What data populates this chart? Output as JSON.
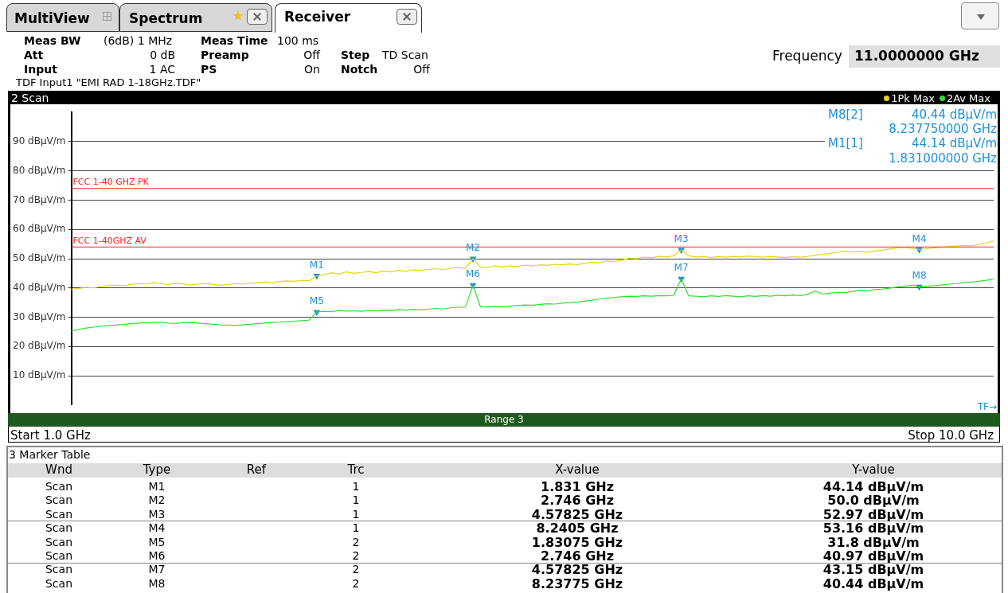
{
  "chart_data": {
    "type": "line",
    "title": "2 Scan",
    "legend": "top right",
    "grid": "y",
    "tick_labels": "y",
    "categories": [
      null,
      null,
      null,
      null,
      null,
      null,
      null,
      null,
      null,
      null,
      null,
      null,
      null,
      null,
      null,
      null,
      null,
      null,
      null,
      null,
      null,
      null,
      null,
      null,
      null,
      null,
      null,
      null,
      null,
      null,
      null,
      null,
      null,
      null,
      null,
      null,
      null,
      null,
      null,
      null,
      null,
      null,
      null,
      null,
      null,
      null,
      null,
      null,
      null,
      null,
      null,
      null,
      null,
      null,
      null,
      null,
      null,
      null,
      null,
      null,
      null,
      null,
      null,
      null,
      null,
      null,
      null,
      null,
      null,
      null,
      null,
      null,
      null,
      null,
      null,
      null,
      null,
      null,
      null,
      null,
      null,
      null,
      null,
      null,
      null,
      null,
      null,
      null,
      null,
      null,
      null,
      null,
      null,
      null,
      null,
      null,
      null,
      null,
      null,
      null,
      null,
      null,
      null,
      null,
      null,
      null,
      null,
      null,
      null,
      null,
      null,
      null,
      null,
      null,
      null,
      null,
      null,
      null,
      null,
      null,
      null,
      null,
      null,
      null,
      null
    ],
    "ylim": [
      0,
      100
    ],
    "yticks": [
      {
        "value": 10,
        "label": "10 dBµV/m"
      },
      {
        "value": 20,
        "label": "20 dBµV/m"
      },
      {
        "value": 30,
        "label": "30 dBµV/m"
      },
      {
        "value": 40,
        "label": "40 dBµV/m"
      },
      {
        "value": 50,
        "label": "50 dBµV/m"
      },
      {
        "value": 60,
        "label": "60 dBµV/m"
      },
      {
        "value": 70,
        "label": "70 dBµV/m"
      },
      {
        "value": 80,
        "label": "80 dBµV/m"
      },
      {
        "value": 90,
        "label": "90 dBµV/m"
      }
    ],
    "series": [
      {
        "name": "1Pk Max",
        "type": "line",
        "color": "#e6d21e",
        "values": [
          39.5,
          39.8,
          40.2,
          40.0,
          40.5,
          40.8,
          41.0,
          40.7,
          41.2,
          41.5,
          41.3,
          41.8,
          41.5,
          41.2,
          41.6,
          41.4,
          41.0,
          41.3,
          41.6,
          41.2,
          40.9,
          41.2,
          41.5,
          41.3,
          41.6,
          41.8,
          42.0,
          41.8,
          42.2,
          42.4,
          42.3,
          42.6,
          42.5,
          44.14,
          44.5,
          45.2,
          44.8,
          45.5,
          45.0,
          45.3,
          45.6,
          45.2,
          45.8,
          45.5,
          46.0,
          45.7,
          46.2,
          46.0,
          46.3,
          46.6,
          46.2,
          46.8,
          47.0,
          46.7,
          50.0,
          47.2,
          47.0,
          47.5,
          47.2,
          47.6,
          47.3,
          47.8,
          47.5,
          47.9,
          47.7,
          48.1,
          47.9,
          48.2,
          48.0,
          48.4,
          48.8,
          48.6,
          49.2,
          49.0,
          49.5,
          50.2,
          50.0,
          50.5,
          50.3,
          50.8,
          50.6,
          51.0,
          52.97,
          51.0,
          50.6,
          50.8,
          50.4,
          50.7,
          50.5,
          50.8,
          50.6,
          50.9,
          50.7,
          50.5,
          50.8,
          50.6,
          50.4,
          50.7,
          50.5,
          50.8,
          51.2,
          51.5,
          51.8,
          52.2,
          52.6,
          52.3,
          52.5,
          52.2,
          52.6,
          52.9,
          53.3,
          53.7,
          53.9,
          53.5,
          53.16,
          53.4,
          53.7,
          53.9,
          54.1,
          54.3,
          54.5,
          54.4,
          54.9,
          55.3,
          56.0
        ]
      },
      {
        "name": "2Av Max",
        "type": "line",
        "color": "#33dd33",
        "values": [
          25.3,
          25.8,
          26.3,
          26.6,
          26.9,
          27.1,
          27.3,
          27.5,
          27.8,
          28.0,
          28.1,
          28.2,
          28.3,
          28.0,
          27.9,
          28.1,
          28.2,
          28.0,
          27.8,
          27.6,
          27.4,
          27.3,
          27.2,
          27.4,
          27.6,
          27.8,
          28.0,
          28.2,
          28.3,
          28.5,
          28.6,
          28.8,
          29.0,
          31.8,
          32.0,
          31.9,
          32.3,
          32.1,
          32.2,
          32.0,
          32.3,
          32.2,
          32.4,
          32.2,
          32.6,
          32.4,
          32.7,
          32.5,
          32.8,
          33.0,
          32.8,
          33.2,
          33.4,
          33.5,
          40.97,
          33.6,
          33.5,
          33.7,
          33.6,
          33.8,
          34.0,
          34.2,
          34.1,
          34.4,
          34.6,
          34.5,
          34.8,
          35.0,
          35.2,
          35.5,
          35.8,
          36.2,
          36.5,
          36.8,
          37.0,
          37.2,
          37.1,
          37.3,
          37.2,
          37.4,
          37.3,
          37.5,
          43.15,
          37.3,
          37.2,
          37.0,
          37.3,
          37.1,
          37.4,
          37.2,
          37.0,
          37.3,
          37.1,
          37.4,
          37.2,
          37.5,
          37.3,
          37.6,
          37.4,
          37.8,
          39.0,
          37.9,
          38.2,
          38.5,
          38.4,
          38.8,
          39.2,
          39.0,
          39.4,
          39.6,
          39.9,
          40.3,
          40.6,
          40.9,
          40.44,
          40.6,
          40.8,
          41.0,
          41.3,
          41.5,
          41.8,
          42.0,
          42.3,
          42.6,
          43.0
        ]
      },
      {
        "type": "scatter",
        "marker": "triangle",
        "color": "#1e90d8",
        "values": [
          null,
          null,
          null,
          null,
          null,
          null,
          null,
          null,
          null,
          null,
          null,
          null,
          null,
          null,
          null,
          null,
          null,
          null,
          null,
          null,
          null,
          null,
          null,
          null,
          null,
          null,
          null,
          null,
          null,
          null,
          null,
          null,
          null,
          44.14,
          null,
          null,
          null,
          null,
          null,
          null,
          null,
          null,
          null,
          null,
          null,
          null,
          null,
          null,
          null,
          null,
          null,
          null,
          null,
          null,
          50.0,
          null,
          null,
          null,
          null,
          null,
          null,
          null,
          null,
          null,
          null,
          null,
          null,
          null,
          null,
          null,
          null,
          null,
          null,
          null,
          null,
          null,
          null,
          null,
          null,
          null,
          null,
          null,
          52.97,
          null,
          null,
          null,
          null,
          null,
          null,
          null,
          null,
          null,
          null,
          null,
          null,
          null,
          null,
          null,
          null,
          null,
          null,
          null,
          null,
          null,
          null,
          null,
          null,
          null,
          null,
          null,
          null,
          null,
          null,
          null,
          53.16,
          null,
          null,
          null,
          null,
          null,
          null,
          null,
          null,
          null,
          null
        ],
        "value_labels": [
          null,
          null,
          null,
          null,
          null,
          null,
          null,
          null,
          null,
          null,
          null,
          null,
          null,
          null,
          null,
          null,
          null,
          null,
          null,
          null,
          null,
          null,
          null,
          null,
          null,
          null,
          null,
          null,
          null,
          null,
          null,
          null,
          null,
          "M1",
          null,
          null,
          null,
          null,
          null,
          null,
          null,
          null,
          null,
          null,
          null,
          null,
          null,
          null,
          null,
          null,
          null,
          null,
          null,
          null,
          "M2",
          null,
          null,
          null,
          null,
          null,
          null,
          null,
          null,
          null,
          null,
          null,
          null,
          null,
          null,
          null,
          null,
          null,
          null,
          null,
          null,
          null,
          null,
          null,
          null,
          null,
          null,
          null,
          "M3",
          null,
          null,
          null,
          null,
          null,
          null,
          null,
          null,
          null,
          null,
          null,
          null,
          null,
          null,
          null,
          null,
          null,
          null,
          null,
          null,
          null,
          null,
          null,
          null,
          null,
          null,
          null,
          null,
          null,
          null,
          null,
          "M4",
          null,
          null,
          null,
          null,
          null,
          null,
          null,
          null,
          null,
          null
        ]
      },
      {
        "type": "scatter",
        "marker": "triangle",
        "color": "#1e90d8",
        "values": [
          null,
          null,
          null,
          null,
          null,
          null,
          null,
          null,
          null,
          null,
          null,
          null,
          null,
          null,
          null,
          null,
          null,
          null,
          null,
          null,
          null,
          null,
          null,
          null,
          null,
          null,
          null,
          null,
          null,
          null,
          null,
          null,
          null,
          31.8,
          null,
          null,
          null,
          null,
          null,
          null,
          null,
          null,
          null,
          null,
          null,
          null,
          null,
          null,
          null,
          null,
          null,
          null,
          null,
          null,
          40.97,
          null,
          null,
          null,
          null,
          null,
          null,
          null,
          null,
          null,
          null,
          null,
          null,
          null,
          null,
          null,
          null,
          null,
          null,
          null,
          null,
          null,
          null,
          null,
          null,
          null,
          null,
          null,
          43.15,
          null,
          null,
          null,
          null,
          null,
          null,
          null,
          null,
          null,
          null,
          null,
          null,
          null,
          null,
          null,
          null,
          null,
          null,
          null,
          null,
          null,
          null,
          null,
          null,
          null,
          null,
          null,
          null,
          null,
          null,
          null,
          40.44,
          null,
          null,
          null,
          null,
          null,
          null,
          null,
          null,
          null,
          null
        ],
        "value_labels": [
          null,
          null,
          null,
          null,
          null,
          null,
          null,
          null,
          null,
          null,
          null,
          null,
          null,
          null,
          null,
          null,
          null,
          null,
          null,
          null,
          null,
          null,
          null,
          null,
          null,
          null,
          null,
          null,
          null,
          null,
          null,
          null,
          null,
          "M5",
          null,
          null,
          null,
          null,
          null,
          null,
          null,
          null,
          null,
          null,
          null,
          null,
          null,
          null,
          null,
          null,
          null,
          null,
          null,
          null,
          "M6",
          null,
          null,
          null,
          null,
          null,
          null,
          null,
          null,
          null,
          null,
          null,
          null,
          null,
          null,
          null,
          null,
          null,
          null,
          null,
          null,
          null,
          null,
          null,
          null,
          null,
          null,
          null,
          "M7",
          null,
          null,
          null,
          null,
          null,
          null,
          null,
          null,
          null,
          null,
          null,
          null,
          null,
          null,
          null,
          null,
          null,
          null,
          null,
          null,
          null,
          null,
          null,
          null,
          null,
          null,
          null,
          null,
          null,
          null,
          null,
          "M8",
          null,
          null,
          null,
          null,
          null,
          null,
          null,
          null,
          null,
          null
        ]
      }
    ],
    "ref_lines": [
      {
        "axis": "y",
        "value": 74,
        "label": "FCC 1-40 GHZ PK",
        "color": "#ff2020"
      },
      {
        "axis": "y",
        "value": 54,
        "label": "FCC 1-40GHZ AV",
        "color": "#ff2020"
      }
    ],
    "annotations": [
      "MultiView",
      "Spectrum",
      "Receiver",
      "Meas BW",
      "(6dB) 1 MHz",
      "Meas Time",
      "100 ms",
      "Att",
      "0 dB",
      "Preamp",
      "Off",
      "Step",
      "TD Scan",
      "Input",
      "1 AC",
      "PS",
      "On",
      "Notch",
      "Off",
      "TDF Input1 \"EMI RAD 1-18GHz.TDF\"",
      "Frequency",
      "11.0000000 GHz",
      "M8[2]",
      "40.44 dBµV/m",
      "8.237750000 GHz",
      "M1[1]",
      "44.14 dBµV/m",
      "1.831000000 GHz",
      "Range 3",
      "TF→",
      "Start 1.0 GHz",
      "Stop 10.0 GHz",
      "3 Marker Table",
      "Wnd",
      "Type",
      "Ref",
      "Trc",
      "X-value",
      "Y-value",
      "Scan",
      "M1",
      "1",
      "1.831 GHz",
      "44.14 dBµV/m",
      "Scan",
      "M2",
      "1",
      "2.746 GHz",
      "50.0 dBµV/m",
      "Scan",
      "M3",
      "1",
      "4.57825 GHz",
      "52.97 dBµV/m",
      "Scan",
      "M4",
      "1",
      "8.2405 GHz",
      "53.16 dBµV/m",
      "Scan",
      "M5",
      "2",
      "1.83075 GHz",
      "31.8 dBµV/m",
      "Scan",
      "M6",
      "2",
      "2.746 GHz",
      "40.97 dBµV/m",
      "Scan",
      "M7",
      "2",
      "4.57825 GHz",
      "43.15 dBµV/m",
      "Scan",
      "M8",
      "2",
      "8.23775 GHz",
      "40.44 dBµV/m"
    ]
  }
}
